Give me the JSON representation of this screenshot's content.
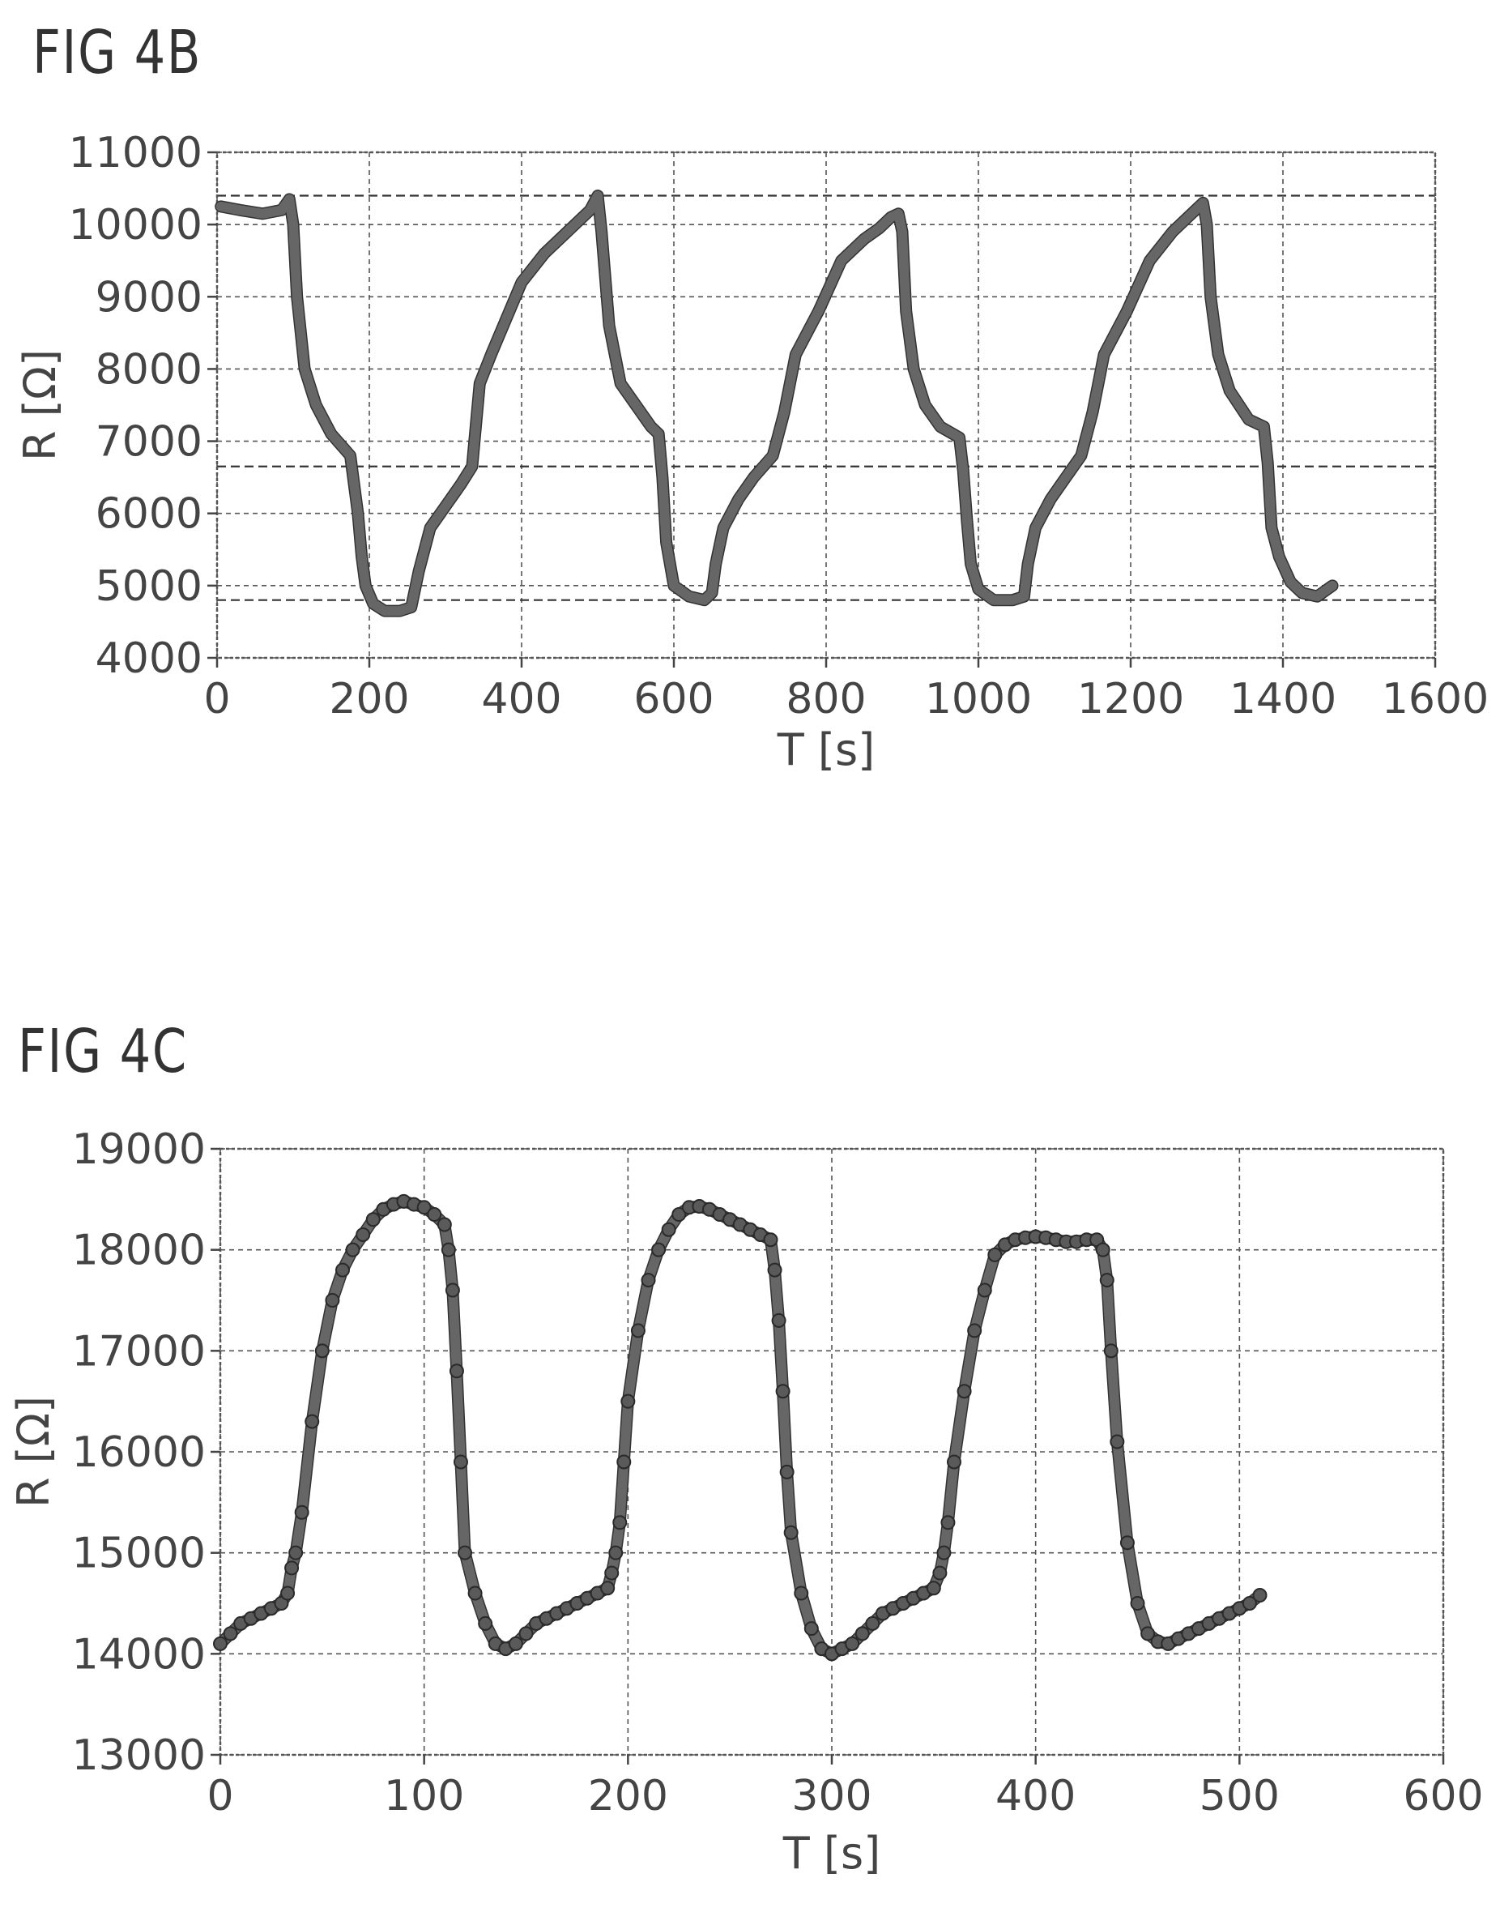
{
  "chart_data": [
    {
      "type": "line",
      "title": "FIG 4B",
      "xlabel": "T [s]",
      "ylabel": "R [Ω]",
      "xlim": [
        0,
        1600
      ],
      "ylim": [
        4000,
        11000
      ],
      "xticks": [
        0,
        200,
        400,
        600,
        800,
        1000,
        1200,
        1400,
        1600
      ],
      "yticks": [
        4000,
        5000,
        6000,
        7000,
        8000,
        9000,
        10000,
        11000
      ],
      "grid": true,
      "reference_lines_y": [
        10400,
        6650,
        4800
      ],
      "series": [
        {
          "x": [
            5,
            30,
            60,
            85,
            95,
            100,
            105,
            115,
            130,
            150,
            175,
            185,
            190,
            195,
            205,
            220,
            240,
            255,
            265,
            280,
            300,
            320,
            335,
            345,
            360,
            380,
            400,
            430,
            460,
            490,
            500,
            505,
            515,
            530,
            550,
            570,
            580,
            585,
            590,
            600,
            620,
            640,
            650,
            655,
            665,
            685,
            705,
            730,
            745,
            760,
            790,
            820,
            850,
            870,
            885,
            895,
            900,
            905,
            915,
            930,
            950,
            975,
            980,
            985,
            990,
            1000,
            1020,
            1045,
            1060,
            1065,
            1075,
            1095,
            1115,
            1135,
            1150,
            1165,
            1195,
            1225,
            1255,
            1285,
            1295,
            1300,
            1305,
            1315,
            1330,
            1355,
            1375,
            1380,
            1385,
            1395,
            1410,
            1425,
            1445,
            1465
          ],
          "y": [
            10250,
            10200,
            10150,
            10200,
            10350,
            10000,
            9000,
            8000,
            7500,
            7100,
            6800,
            6000,
            5400,
            5000,
            4750,
            4650,
            4650,
            4700,
            5200,
            5800,
            6100,
            6400,
            6650,
            7800,
            8200,
            8700,
            9200,
            9600,
            9900,
            10200,
            10400,
            9900,
            8600,
            7800,
            7500,
            7200,
            7100,
            6500,
            5600,
            5000,
            4850,
            4800,
            4900,
            5300,
            5800,
            6200,
            6500,
            6800,
            7400,
            8200,
            8800,
            9500,
            9800,
            9950,
            10100,
            10150,
            9900,
            8800,
            8000,
            7500,
            7200,
            7050,
            6600,
            5900,
            5300,
            4950,
            4800,
            4800,
            4850,
            5300,
            5800,
            6200,
            6500,
            6800,
            7400,
            8200,
            8800,
            9500,
            9900,
            10200,
            10300,
            10000,
            9000,
            8200,
            7700,
            7300,
            7200,
            6700,
            5800,
            5400,
            5050,
            4900,
            4850,
            5000
          ]
        }
      ]
    },
    {
      "type": "scatter",
      "title": "FIG 4C",
      "xlabel": "T [s]",
      "ylabel": "R [Ω]",
      "xlim": [
        0,
        600
      ],
      "ylim": [
        13000,
        19000
      ],
      "xticks": [
        0,
        100,
        200,
        300,
        400,
        500,
        600
      ],
      "yticks": [
        13000,
        14000,
        15000,
        16000,
        17000,
        18000,
        19000
      ],
      "grid": true,
      "series": [
        {
          "x": [
            0,
            5,
            10,
            15,
            20,
            25,
            30,
            33,
            35,
            37,
            40,
            45,
            50,
            55,
            60,
            65,
            70,
            75,
            80,
            85,
            90,
            95,
            100,
            105,
            110,
            112,
            114,
            116,
            118,
            120,
            125,
            130,
            135,
            140,
            145,
            150,
            155,
            160,
            165,
            170,
            175,
            180,
            185,
            190,
            192,
            194,
            196,
            198,
            200,
            205,
            210,
            215,
            220,
            225,
            230,
            235,
            240,
            245,
            250,
            255,
            260,
            265,
            270,
            272,
            274,
            276,
            278,
            280,
            285,
            290,
            295,
            300,
            305,
            310,
            315,
            320,
            325,
            330,
            335,
            340,
            345,
            350,
            353,
            355,
            357,
            360,
            365,
            370,
            375,
            380,
            385,
            390,
            395,
            400,
            405,
            410,
            415,
            420,
            425,
            430,
            433,
            435,
            437,
            440,
            445,
            450,
            455,
            460,
            465,
            470,
            475,
            480,
            485,
            490,
            495,
            500,
            505,
            510
          ],
          "y": [
            14100,
            14200,
            14300,
            14350,
            14400,
            14450,
            14500,
            14600,
            14850,
            15000,
            15400,
            16300,
            17000,
            17500,
            17800,
            18000,
            18150,
            18300,
            18400,
            18450,
            18480,
            18450,
            18420,
            18350,
            18250,
            18000,
            17600,
            16800,
            15900,
            15000,
            14600,
            14300,
            14100,
            14050,
            14100,
            14200,
            14300,
            14350,
            14400,
            14450,
            14500,
            14550,
            14600,
            14650,
            14800,
            15000,
            15300,
            15900,
            16500,
            17200,
            17700,
            18000,
            18200,
            18350,
            18420,
            18430,
            18400,
            18350,
            18300,
            18250,
            18200,
            18150,
            18100,
            17800,
            17300,
            16600,
            15800,
            15200,
            14600,
            14250,
            14050,
            14000,
            14050,
            14100,
            14200,
            14300,
            14400,
            14450,
            14500,
            14550,
            14600,
            14650,
            14800,
            15000,
            15300,
            15900,
            16600,
            17200,
            17600,
            17950,
            18050,
            18100,
            18120,
            18130,
            18120,
            18100,
            18080,
            18080,
            18100,
            18100,
            18000,
            17700,
            17000,
            16100,
            15100,
            14500,
            14200,
            14120,
            14100,
            14150,
            14200,
            14250,
            14300,
            14350,
            14400,
            14450,
            14500,
            14580
          ]
        }
      ]
    }
  ]
}
